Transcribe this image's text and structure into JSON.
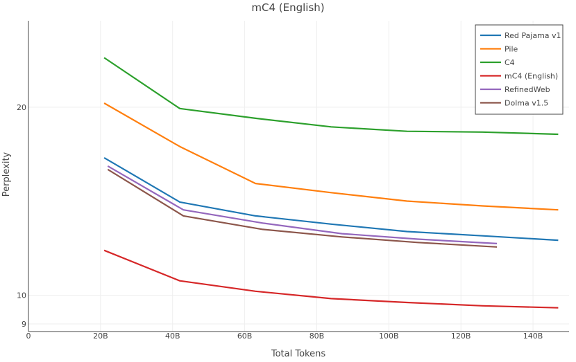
{
  "chart_data": {
    "type": "line",
    "title": "mC4 (English)",
    "xlabel": "Total Tokens",
    "ylabel": "Perplexity",
    "x_unit": "billion tokens",
    "x_ticks": [
      {
        "value": 0,
        "label": "0"
      },
      {
        "value": 20,
        "label": "20B"
      },
      {
        "value": 40,
        "label": "40B"
      },
      {
        "value": 60,
        "label": "60B"
      },
      {
        "value": 80,
        "label": "80B"
      },
      {
        "value": 100,
        "label": "100B"
      },
      {
        "value": 120,
        "label": "120B"
      },
      {
        "value": 140,
        "label": "140B"
      }
    ],
    "y_ticks": [
      {
        "value": 9,
        "label": "9"
      },
      {
        "value": 10,
        "label": "10"
      },
      {
        "value": 20,
        "label": "20"
      }
    ],
    "y_scale": "log",
    "xlim": [
      0,
      150
    ],
    "ylim": [
      8.75,
      27.5
    ],
    "grid": true,
    "legend": "top-right",
    "series": [
      {
        "name": "Red Pajama v1",
        "color": "#1f77b4",
        "x": [
          21,
          42,
          63,
          84,
          105,
          126,
          147
        ],
        "y": [
          16.6,
          14.1,
          13.4,
          13.0,
          12.65,
          12.45,
          12.25
        ]
      },
      {
        "name": "Pile",
        "color": "#ff7f0e",
        "x": [
          21,
          42,
          63,
          84,
          105,
          126,
          147
        ],
        "y": [
          20.3,
          17.3,
          15.1,
          14.6,
          14.15,
          13.9,
          13.7
        ]
      },
      {
        "name": "C4",
        "color": "#2ca02c",
        "x": [
          21,
          42,
          63,
          84,
          105,
          126,
          147
        ],
        "y": [
          24.0,
          19.9,
          19.2,
          18.6,
          18.3,
          18.25,
          18.1
        ]
      },
      {
        "name": "mC4 (English)",
        "color": "#d62728",
        "x": [
          21,
          42,
          63,
          84,
          105,
          126,
          147
        ],
        "y": [
          11.8,
          10.55,
          10.15,
          9.88,
          9.74,
          9.62,
          9.55
        ]
      },
      {
        "name": "RefinedWeb",
        "color": "#9467bd",
        "x": [
          22,
          43,
          65,
          87,
          108,
          130
        ],
        "y": [
          16.1,
          13.7,
          13.05,
          12.55,
          12.3,
          12.1
        ]
      },
      {
        "name": "Dolma v1.5",
        "color": "#8c564b",
        "x": [
          22,
          43,
          65,
          87,
          108,
          130
        ],
        "y": [
          15.9,
          13.4,
          12.75,
          12.4,
          12.15,
          11.95
        ]
      }
    ]
  }
}
